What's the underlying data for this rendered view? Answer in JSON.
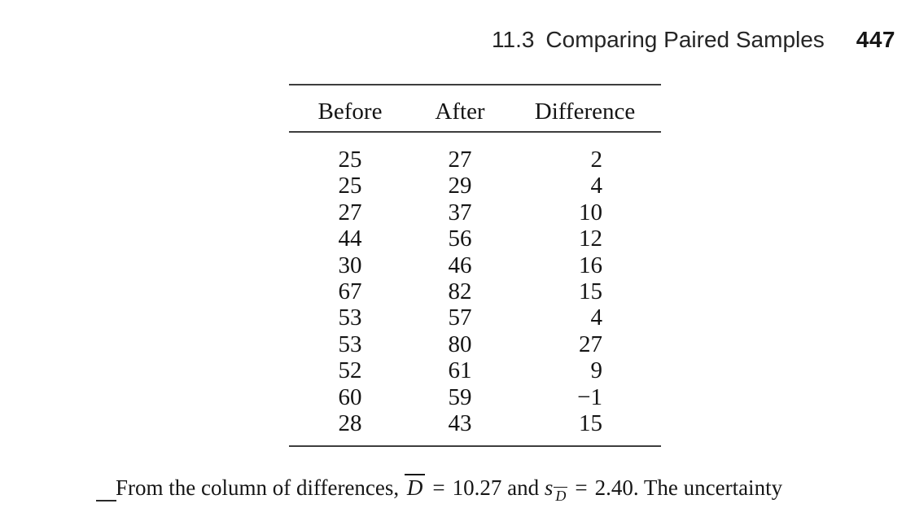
{
  "header": {
    "section_number": "11.3",
    "section_title": "Comparing Paired Samples",
    "page_number": "447"
  },
  "table": {
    "columns": [
      "Before",
      "After",
      "Difference"
    ],
    "rows": [
      [
        "25",
        "27",
        "2"
      ],
      [
        "25",
        "29",
        "4"
      ],
      [
        "27",
        "37",
        "10"
      ],
      [
        "44",
        "56",
        "12"
      ],
      [
        "30",
        "46",
        "16"
      ],
      [
        "67",
        "82",
        "15"
      ],
      [
        "53",
        "57",
        "4"
      ],
      [
        "53",
        "80",
        "27"
      ],
      [
        "52",
        "61",
        "9"
      ],
      [
        "60",
        "59",
        "−1"
      ],
      [
        "28",
        "43",
        "15"
      ]
    ]
  },
  "paragraph": {
    "text_before": "From the column of differences,",
    "dbar_symbol": "D",
    "equals1": "=",
    "dbar_value": "10.27",
    "conjunction": "and",
    "s_symbol": "s",
    "s_subscript": "D",
    "equals2": "=",
    "s_value": "2.40.",
    "text_after": "The uncertainty"
  },
  "colors": {
    "text": "#161616",
    "rule": "#3d3d3d",
    "background": "#ffffff"
  }
}
